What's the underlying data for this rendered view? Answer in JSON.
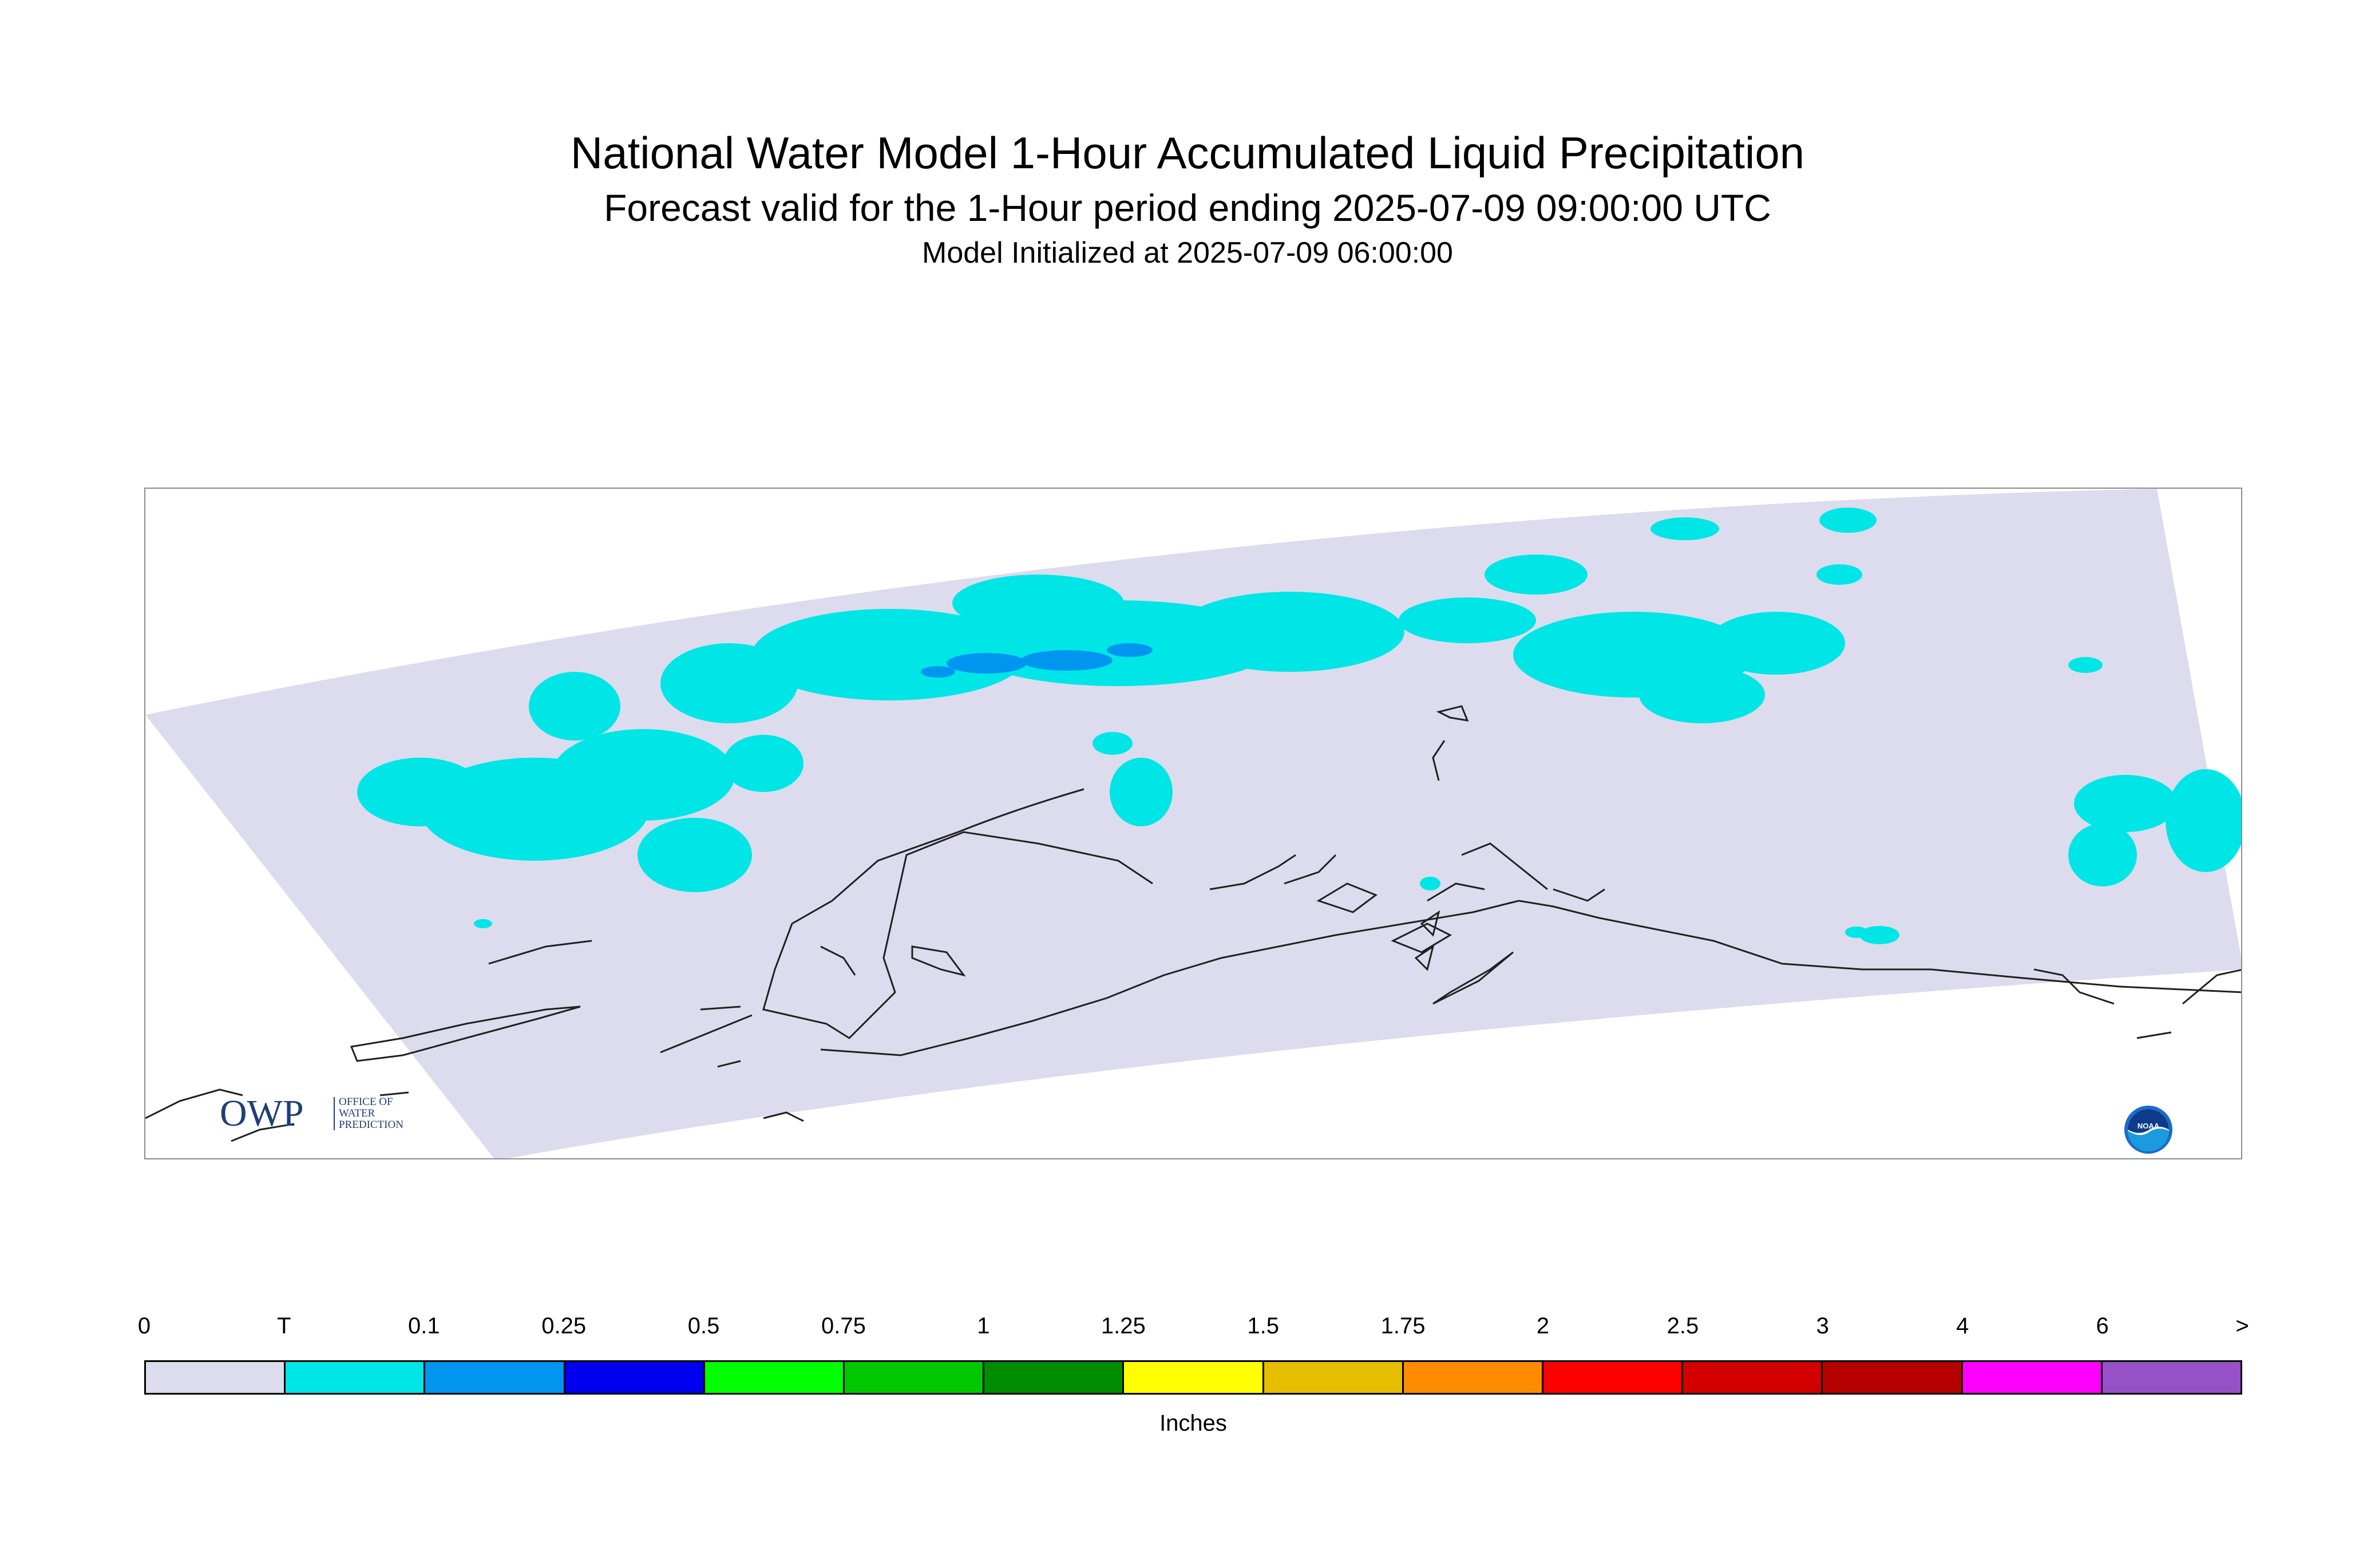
{
  "titles": {
    "main": "National Water Model 1-Hour Accumulated Liquid Precipitation",
    "sub": "Forecast valid for the 1-Hour period ending 2025-07-09 09:00:00 UTC",
    "init": "Model Initialized at 2025-07-09 06:00:00"
  },
  "logos": {
    "owp_letters": "OWP",
    "owp_text": [
      "OFFICE OF",
      "WATER",
      "PREDICTION"
    ],
    "noaa_text": "NOAA"
  },
  "legend": {
    "tick_labels": [
      "0",
      "T",
      "0.1",
      "0.25",
      "0.5",
      "0.75",
      "1",
      "1.25",
      "1.5",
      "1.75",
      "2",
      "2.5",
      "3",
      "4",
      "6",
      ">"
    ],
    "colors": [
      "#dcdcee",
      "#00e6e6",
      "#0096f0",
      "#0000f0",
      "#00ff00",
      "#00c800",
      "#008c00",
      "#ffff00",
      "#e6be00",
      "#ff8c00",
      "#ff0000",
      "#d20000",
      "#b40000",
      "#ff00ff",
      "#9650c8"
    ],
    "units": "Inches"
  },
  "map": {
    "background_color": "#dcdcee",
    "trace_color": "#00e6e6",
    "light_color": "#0096f0",
    "coast_color": "#202020",
    "max_category": "0.1"
  }
}
